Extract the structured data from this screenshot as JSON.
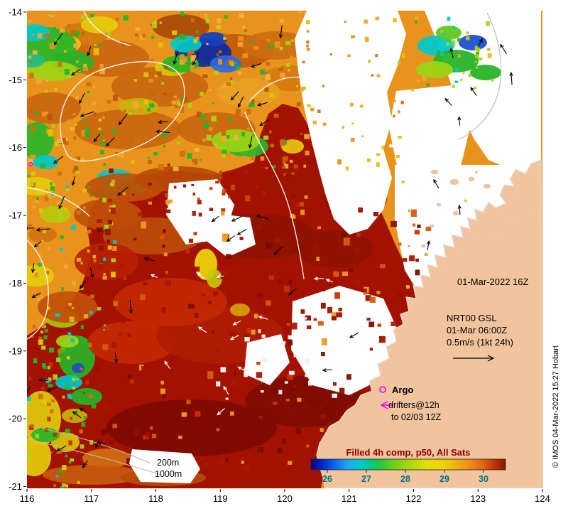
{
  "axes": {
    "x_ticks": [
      "116",
      "117",
      "118",
      "119",
      "120",
      "121",
      "122",
      "123",
      "124"
    ],
    "y_ticks": [
      "-14",
      "-15",
      "-16",
      "-17",
      "-18",
      "-19",
      "-20",
      "-21"
    ]
  },
  "annotations": {
    "timestamp": "01-Mar-2022 16Z",
    "nrt_label": "NRT00 GSL",
    "nrt_time": "01-Mar 06:00Z",
    "nrt_scale": "0.5m/s (1kt 24h)",
    "argo_label": "Argo",
    "drifters_label": "drifters@12h",
    "drifters_until": "to 02/03 12Z",
    "bathy_200": "200m",
    "bathy_1000": "1000m",
    "credit": "© IMOS 04-Mar-2022 15:27 Hobart"
  },
  "colorbar": {
    "title": "Filled 4h comp, p50, All Sats",
    "title_color": "#8b0000",
    "tick_color": "#007080",
    "tick_labels": [
      "26",
      "27",
      "28",
      "29",
      "30"
    ],
    "gradient": [
      {
        "o": 0,
        "c": "#00008b"
      },
      {
        "o": 6,
        "c": "#0028c8"
      },
      {
        "o": 12,
        "c": "#0a64e8"
      },
      {
        "o": 18,
        "c": "#20a0f0"
      },
      {
        "o": 24,
        "c": "#00c8d8"
      },
      {
        "o": 30,
        "c": "#00c896"
      },
      {
        "o": 36,
        "c": "#28c838"
      },
      {
        "o": 44,
        "c": "#7cd014"
      },
      {
        "o": 52,
        "c": "#b4d80a"
      },
      {
        "o": 60,
        "c": "#e0e00a"
      },
      {
        "o": 68,
        "c": "#f0d00a"
      },
      {
        "o": 74,
        "c": "#f0b414"
      },
      {
        "o": 81,
        "c": "#ee9018"
      },
      {
        "o": 88,
        "c": "#e06810"
      },
      {
        "o": 94,
        "c": "#c03808"
      },
      {
        "o": 100,
        "c": "#8b1500"
      }
    ]
  },
  "colors": {
    "land": "#f2c49e",
    "ocean_warm": "#a31200",
    "ocean_mid": "#e8941c",
    "magenta": "#f000f0"
  }
}
